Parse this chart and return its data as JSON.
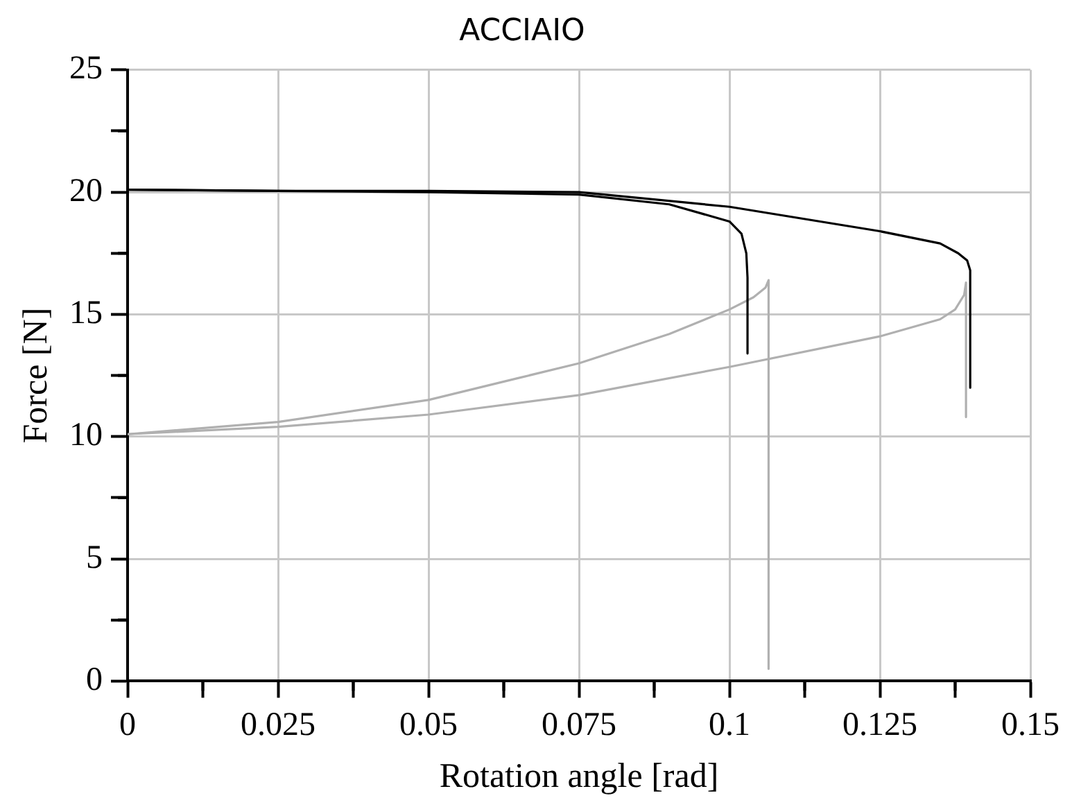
{
  "chart_data": {
    "type": "line",
    "title": "ACCIAIO",
    "xlabel": "Rotation angle [rad]",
    "ylabel": "Force [N]",
    "xlim": [
      0,
      0.15
    ],
    "ylim": [
      0,
      25
    ],
    "xticks": [
      0,
      {
        "value": 0.0125,
        "label": null
      },
      0.025,
      {
        "value": 0.0375,
        "label": null
      },
      0.05,
      {
        "value": 0.0625,
        "label": null
      },
      0.075,
      {
        "value": 0.0875,
        "label": null
      },
      0.1,
      {
        "value": 0.1125,
        "label": null
      },
      0.125,
      {
        "value": 0.1375,
        "label": null
      },
      0.15
    ],
    "yticks": [
      0,
      {
        "value": 2.5,
        "label": null
      },
      5,
      {
        "value": 7.5,
        "label": null
      },
      10,
      {
        "value": 12.5,
        "label": null
      },
      15,
      {
        "value": 17.5,
        "label": null
      },
      20,
      {
        "value": 22.5,
        "label": null
      },
      25
    ],
    "grid": true,
    "legend": false,
    "marker": "none",
    "line_style": "solid",
    "series": [
      {
        "color": "#000000",
        "x": [
          0,
          0.025,
          0.05,
          0.075,
          0.09,
          0.1,
          0.102,
          0.1028,
          0.103,
          0.103
        ],
        "values": [
          20.1,
          20.05,
          20.0,
          19.9,
          19.5,
          18.8,
          18.3,
          17.5,
          16.5,
          13.4
        ]
      },
      {
        "color": "#000000",
        "x": [
          0,
          0.025,
          0.05,
          0.075,
          0.1,
          0.125,
          0.135,
          0.138,
          0.1395,
          0.14,
          0.14
        ],
        "values": [
          20.1,
          20.05,
          20.05,
          20.0,
          19.4,
          18.4,
          17.9,
          17.5,
          17.2,
          16.8,
          12.0
        ]
      },
      {
        "color": "#b0b0b0",
        "x": [
          0,
          0.025,
          0.05,
          0.065,
          0.075,
          0.09,
          0.1,
          0.104,
          0.106,
          0.1065,
          0.1065
        ],
        "values": [
          10.1,
          10.6,
          11.5,
          12.4,
          13.0,
          14.2,
          15.2,
          15.7,
          16.1,
          16.4,
          0.5
        ]
      },
      {
        "color": "#b0b0b0",
        "x": [
          0,
          0.025,
          0.05,
          0.075,
          0.1,
          0.125,
          0.135,
          0.1375,
          0.139,
          0.1393,
          0.1393
        ],
        "values": [
          10.1,
          10.4,
          10.9,
          11.7,
          12.85,
          14.1,
          14.8,
          15.2,
          15.8,
          16.3,
          10.8
        ]
      }
    ]
  }
}
